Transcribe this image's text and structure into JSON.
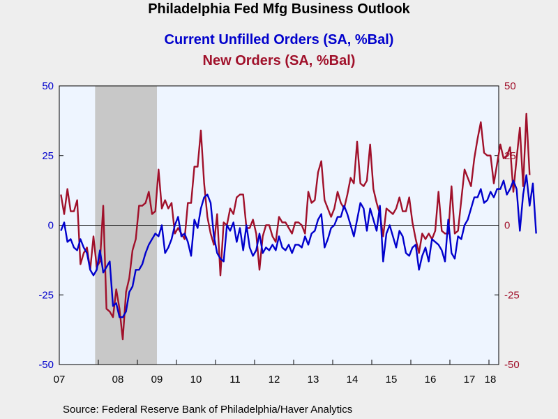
{
  "title": "Philadelphia Fed Mfg Business Outlook",
  "subtitle_series1": "Current Unfilled Orders (SA, %Bal)",
  "subtitle_series2": "New Orders (SA, %Bal)",
  "source": "Source:  Federal Reserve Bank of Philadelphia/Haver Analytics",
  "colors": {
    "series1": "#0000cc",
    "series2": "#a0102a",
    "plot_bg": "#eef5ff",
    "recession": "#c8c8c8",
    "page_bg": "#eeeeee"
  },
  "chart_data": {
    "type": "line",
    "x_start": "2007-01",
    "x_end": "2018-03",
    "x_tick_labels": [
      "07",
      "08",
      "09",
      "10",
      "11",
      "12",
      "13",
      "14",
      "15",
      "16",
      "17",
      "18"
    ],
    "ylim": [
      -50,
      50
    ],
    "y_ticks": [
      50,
      25,
      0,
      -25,
      -50
    ],
    "y_tick_labels_left": [
      "50",
      "25",
      "0",
      "-25",
      "-50"
    ],
    "y_tick_labels_right": [
      "50",
      "25",
      "0",
      "-25",
      "-50"
    ],
    "zero_line": true,
    "recession_shading": [
      {
        "start": "2007-12",
        "end": "2009-06"
      }
    ],
    "series": [
      {
        "name": "Current Unfilled Orders (SA, %Bal)",
        "axis": "left",
        "values": [
          -2,
          1,
          -6,
          -5,
          -8,
          -9,
          -5,
          -8,
          -10,
          -16,
          -18,
          -16,
          -9,
          -17,
          -15,
          -13,
          -29,
          -28,
          -33,
          -33,
          -31,
          -24,
          -22,
          -16,
          -16,
          -14,
          -10,
          -7,
          -5,
          -3,
          -4,
          0,
          -10,
          -8,
          -5,
          0,
          3,
          -4,
          -3,
          -6,
          -11,
          2,
          -1,
          6,
          10,
          11,
          8,
          -4,
          -10,
          -12,
          -13,
          0,
          -2,
          1,
          -6,
          -1,
          -9,
          0,
          -8,
          -11,
          -9,
          -3,
          -10,
          -8,
          -9,
          -7,
          -9,
          -4,
          -8,
          -9,
          -7,
          -10,
          -7,
          -7,
          -8,
          -4,
          -7,
          -3,
          -2,
          2,
          4,
          -8,
          -5,
          -1,
          0,
          3,
          3,
          7,
          4,
          0,
          -4,
          2,
          8,
          6,
          -2,
          6,
          2,
          -2,
          7,
          -13,
          -3,
          0,
          -4,
          -8,
          -2,
          -4,
          -10,
          -11,
          -8,
          -7,
          -16,
          -11,
          -8,
          -13,
          -5,
          -6,
          -7,
          -9,
          -13,
          2,
          -10,
          -12,
          -4,
          -5,
          0,
          2,
          6,
          10,
          10,
          13,
          8,
          9,
          12,
          10,
          13,
          13,
          16,
          11,
          13,
          16,
          13,
          -2,
          11,
          18,
          7,
          15,
          -3
        ]
      },
      {
        "name": "New Orders (SA, %Bal)",
        "axis": "right",
        "values": [
          11,
          4,
          13,
          5,
          5,
          9,
          -14,
          -10,
          -8,
          -16,
          -4,
          -15,
          -13,
          7,
          -30,
          -31,
          -33,
          -23,
          -30,
          -41,
          -24,
          -19,
          -9,
          -5,
          7,
          7,
          8,
          12,
          4,
          5,
          20,
          6,
          9,
          6,
          8,
          -3,
          -1,
          -3,
          -5,
          8,
          8,
          21,
          21,
          34,
          15,
          3,
          -3,
          -7,
          4,
          -18,
          1,
          0,
          6,
          4,
          10,
          11,
          11,
          -1,
          -1,
          2,
          -3,
          -16,
          -4,
          0,
          0,
          -4,
          -6,
          3,
          1,
          1,
          -1,
          -3,
          1,
          1,
          0,
          -3,
          12,
          8,
          9,
          19,
          23,
          9,
          6,
          3,
          6,
          12,
          8,
          6,
          11,
          17,
          15,
          30,
          15,
          14,
          16,
          29,
          13,
          8,
          4,
          -4,
          6,
          5,
          4,
          6,
          10,
          5,
          5,
          10,
          1,
          -5,
          -10,
          -3,
          -5,
          -3,
          -5,
          -2,
          12,
          -2,
          -3,
          -3,
          14,
          -3,
          -2,
          9,
          20,
          17,
          14,
          24,
          31,
          37,
          26,
          25,
          25,
          15,
          22,
          29,
          24,
          25,
          28,
          12,
          24,
          35,
          14,
          40,
          18
        ]
      }
    ]
  }
}
